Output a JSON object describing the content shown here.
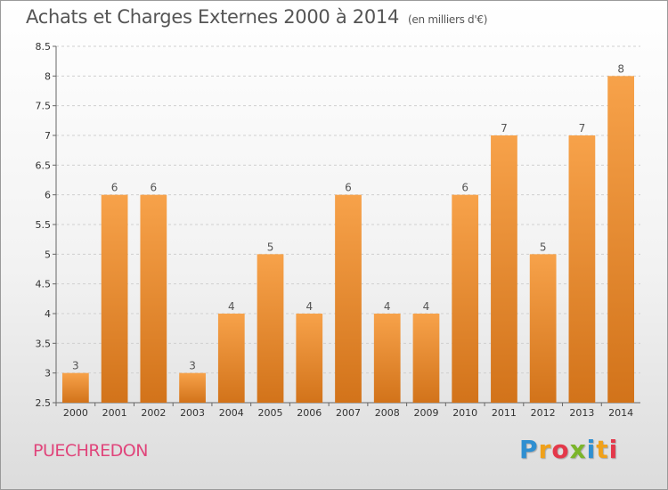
{
  "title": {
    "main": "Achats et Charges Externes 2000 à 2014",
    "unit": "(en milliers d'€)"
  },
  "commune": "PUECHREDON",
  "logo": {
    "text": "Proxiti",
    "colors": [
      "#2f8fd1",
      "#f0a11a",
      "#e4384a",
      "#7bb52a",
      "#2f8fd1",
      "#f0a11a",
      "#e4384a"
    ]
  },
  "chart_data": {
    "type": "bar",
    "title": "Achats et Charges Externes 2000 à 2014",
    "subtitle": "(en milliers d'€)",
    "xlabel": "",
    "ylabel": "",
    "categories": [
      "2000",
      "2001",
      "2002",
      "2003",
      "2004",
      "2005",
      "2006",
      "2007",
      "2008",
      "2009",
      "2010",
      "2011",
      "2012",
      "2013",
      "2014"
    ],
    "values": [
      3,
      6,
      6,
      3,
      4,
      5,
      4,
      6,
      4,
      4,
      6,
      7,
      5,
      7,
      8
    ],
    "data_labels": [
      "3",
      "6",
      "6",
      "3",
      "4",
      "5",
      "4",
      "6",
      "4",
      "4",
      "6",
      "7",
      "5",
      "7",
      "8"
    ],
    "ylim": [
      2.5,
      8.5
    ],
    "y_ticks": [
      "2.5",
      "3",
      "3.5",
      "4",
      "4.5",
      "5",
      "5.5",
      "6",
      "6.5",
      "7",
      "7.5",
      "8",
      "8.5"
    ],
    "grid": true,
    "bar_color": "#f0902a"
  }
}
